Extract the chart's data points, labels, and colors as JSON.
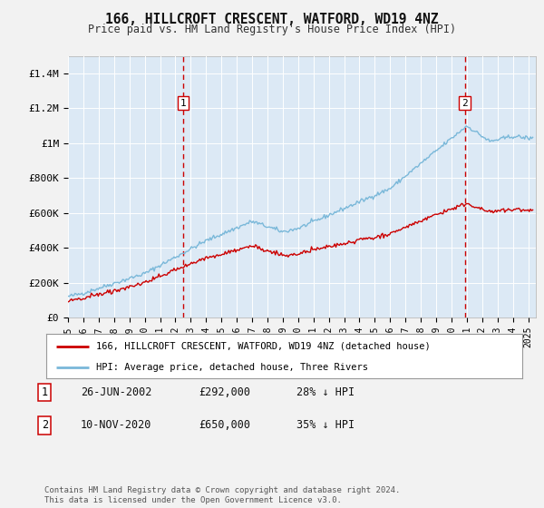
{
  "title": "166, HILLCROFT CRESCENT, WATFORD, WD19 4NZ",
  "subtitle": "Price paid vs. HM Land Registry's House Price Index (HPI)",
  "bg_color": "#dce9f5",
  "fig_bg_color": "#f2f2f2",
  "ylabel_color": "#333333",
  "ylim": [
    0,
    1500000
  ],
  "yticks": [
    0,
    200000,
    400000,
    600000,
    800000,
    1000000,
    1200000,
    1400000
  ],
  "ytick_labels": [
    "£0",
    "£200K",
    "£400K",
    "£600K",
    "£800K",
    "£1M",
    "£1.2M",
    "£1.4M"
  ],
  "sale1_date_num": 2002.49,
  "sale1_price": 292000,
  "sale1_label": "1",
  "sale2_date_num": 2020.86,
  "sale2_price": 650000,
  "sale2_label": "2",
  "legend_label_red": "166, HILLCROFT CRESCENT, WATFORD, WD19 4NZ (detached house)",
  "legend_label_blue": "HPI: Average price, detached house, Three Rivers",
  "table_data": [
    {
      "num": "1",
      "date": "26-JUN-2002",
      "price": "£292,000",
      "pct": "28% ↓ HPI"
    },
    {
      "num": "2",
      "date": "10-NOV-2020",
      "price": "£650,000",
      "pct": "35% ↓ HPI"
    }
  ],
  "footer": "Contains HM Land Registry data © Crown copyright and database right 2024.\nThis data is licensed under the Open Government Licence v3.0.",
  "red_color": "#cc0000",
  "blue_color": "#7ab8d9",
  "grid_color": "#ffffff",
  "vline_color": "#cc0000",
  "xlim_start": 1995,
  "xlim_end": 2025.5
}
